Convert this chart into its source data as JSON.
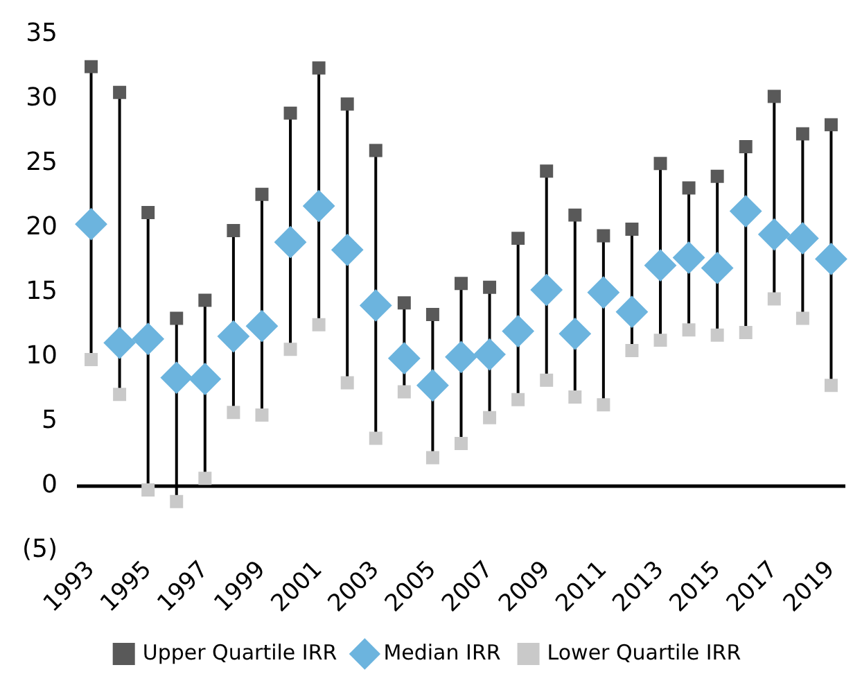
{
  "chart_data": {
    "type": "scatter",
    "categories": [
      "1993",
      null,
      "1995",
      null,
      "1997",
      null,
      "1999",
      null,
      "2001",
      null,
      "2003",
      null,
      "2005",
      null,
      "2007",
      null,
      "2009",
      null,
      "2011",
      null,
      "2013",
      null,
      "2015",
      null,
      "2017",
      null,
      "2019"
    ],
    "series": [
      {
        "name": "Upper Quartile IRR",
        "color": "#595959",
        "marker": "square",
        "values": [
          32.5,
          30.5,
          21.2,
          13.0,
          14.4,
          19.8,
          22.6,
          28.9,
          32.4,
          29.6,
          26.0,
          14.2,
          13.3,
          15.7,
          15.4,
          19.2,
          24.4,
          21.0,
          19.4,
          19.9,
          25.0,
          23.1,
          24.0,
          26.3,
          30.2,
          27.3,
          28.0
        ]
      },
      {
        "name": "Median IRR",
        "color": "#6cb4de",
        "marker": "diamond",
        "values": [
          20.3,
          11.1,
          11.4,
          8.4,
          8.3,
          11.6,
          12.4,
          18.9,
          21.7,
          18.3,
          14.0,
          9.9,
          7.8,
          10.0,
          10.2,
          12.0,
          15.2,
          11.8,
          15.0,
          13.5,
          17.1,
          17.7,
          16.9,
          21.3,
          19.5,
          19.2,
          17.6
        ]
      },
      {
        "name": "Lower Quartile IRR",
        "color": "#c9c9c9",
        "marker": "square",
        "values": [
          9.8,
          7.1,
          -0.3,
          -1.2,
          0.6,
          5.7,
          5.5,
          10.6,
          12.5,
          8.0,
          3.7,
          7.3,
          2.2,
          3.3,
          5.3,
          6.7,
          8.2,
          6.9,
          6.3,
          10.5,
          11.3,
          12.1,
          11.7,
          11.9,
          14.5,
          13.0,
          7.8
        ]
      }
    ],
    "ylim": [
      -5,
      35
    ],
    "yticks": [
      {
        "value": -5,
        "label": "(5)"
      },
      0,
      5,
      10,
      15,
      20,
      25,
      30,
      35
    ],
    "ref_lines": [
      {
        "axis": "y",
        "value": 0,
        "color": "#000000"
      }
    ],
    "grid": false,
    "legend": "bottom"
  }
}
